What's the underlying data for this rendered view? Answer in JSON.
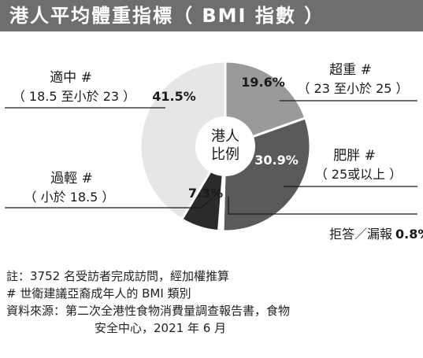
{
  "title": "港人平均體重指標（ BMI 指數 ）",
  "chart_data": {
    "type": "pie",
    "center_label": [
      "港人",
      "比例"
    ],
    "slices": [
      {
        "label": "超重 #",
        "sublabel": "（ 23 至小於 25 ）",
        "value": 19.6,
        "value_text": "19.6%",
        "color": "#9a9a9a"
      },
      {
        "label": "肥胖 #",
        "sublabel": "（ 25或以上 ）",
        "value": 30.9,
        "value_text": "30.9%",
        "color": "#5a5a5a"
      },
      {
        "label": "拒答／漏報",
        "sublabel": "",
        "value": 0.8,
        "value_text": "0.8%",
        "color": "#ffffff"
      },
      {
        "label": "過輕 #",
        "sublabel": "（ 小於 18.5 ）",
        "value": 7.3,
        "value_text": "7.3%",
        "color": "#2b2b2b"
      },
      {
        "label": "適中 #",
        "sublabel": "（ 18.5 至小於 23 ）",
        "value": 41.5,
        "value_text": "41.5%",
        "color": "#e6e6e6"
      }
    ]
  },
  "notes": {
    "line1": "註：3752 名受訪者完成訪問，經加權推算",
    "line2": "# 世衛建議亞裔成年人的 BMI 類別",
    "line3": "資料來源：第二次全港性食物消費量調查報告書，食物",
    "line4": "安全中心，2021 年 6 月"
  }
}
